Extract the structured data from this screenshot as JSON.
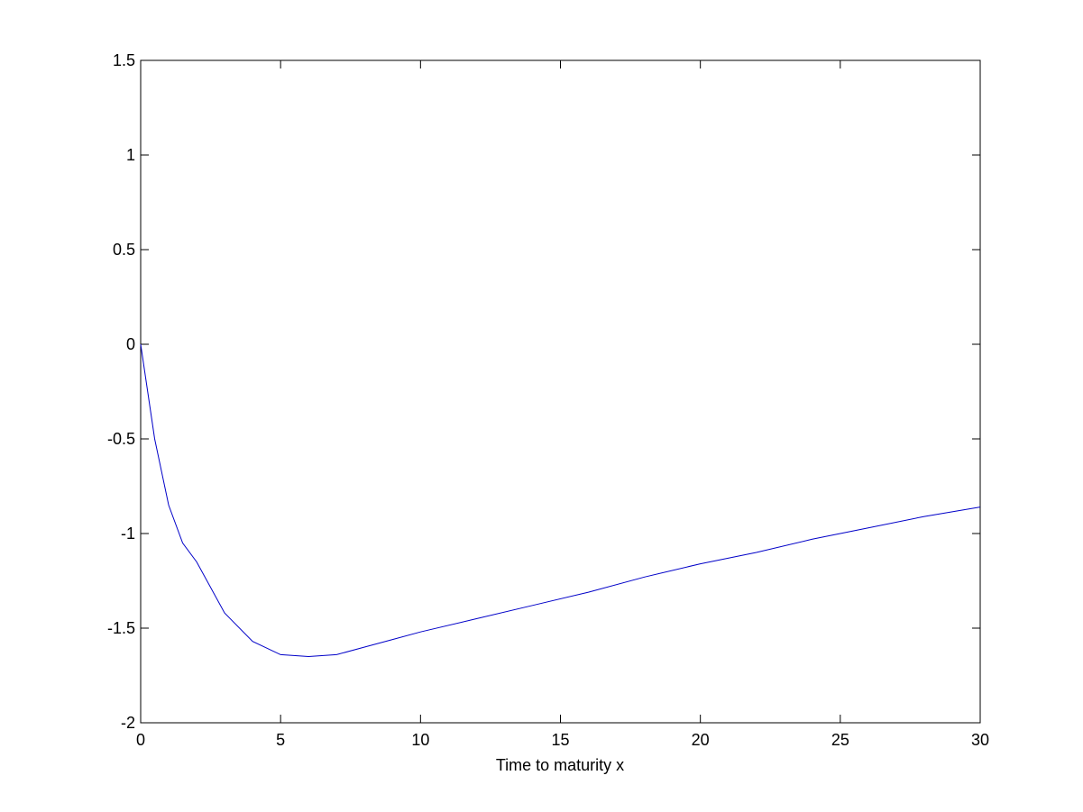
{
  "chart_data": {
    "type": "line",
    "x_label": "Time to maturity x",
    "x": [
      0,
      0.5,
      1,
      1.5,
      2,
      3,
      4,
      5,
      6,
      7,
      8,
      9,
      10,
      12,
      14,
      16,
      18,
      20,
      22,
      24,
      26,
      28,
      30
    ],
    "values": [
      0,
      -0.5,
      -0.85,
      -1.05,
      -1.15,
      -1.42,
      -1.57,
      -1.64,
      -1.65,
      -1.64,
      -1.6,
      -1.56,
      -1.52,
      -1.45,
      -1.38,
      -1.31,
      -1.23,
      -1.16,
      -1.1,
      -1.03,
      -0.97,
      -0.91,
      -0.86
    ],
    "color": "#0000c8",
    "xlim": [
      0,
      30
    ],
    "xticks": [
      0,
      5,
      10,
      15,
      20,
      25,
      30
    ],
    "ylim": [
      -2,
      1.5
    ],
    "yticks": [
      -2,
      -1.5,
      -1,
      -0.5,
      0,
      0.5,
      1,
      1.5
    ]
  }
}
